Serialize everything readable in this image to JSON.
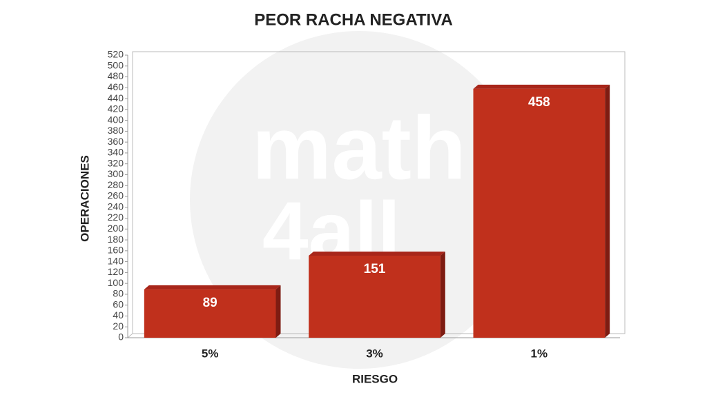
{
  "chart_data": {
    "type": "bar",
    "title": "PEOR RACHA NEGATIVA",
    "x_label": "RIESGO",
    "y_label": "OPERACIONES",
    "categories": [
      "5%",
      "3%",
      "1%"
    ],
    "values": [
      89,
      151,
      458
    ],
    "color": "#c0301c",
    "ylim": [
      0,
      520
    ],
    "yticks": [
      0,
      20,
      40,
      60,
      80,
      100,
      120,
      140,
      160,
      180,
      200,
      220,
      240,
      260,
      280,
      300,
      320,
      340,
      360,
      380,
      400,
      420,
      440,
      460,
      480,
      500,
      520
    ],
    "grid": false,
    "watermark": [
      "math",
      "4all"
    ]
  }
}
